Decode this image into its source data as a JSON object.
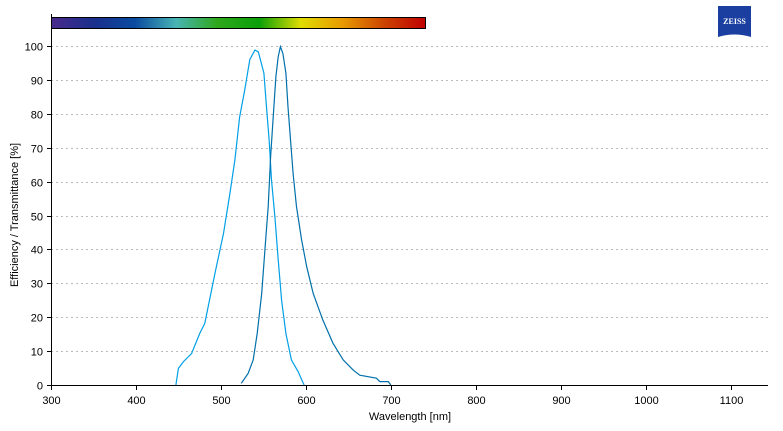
{
  "chart_data": {
    "type": "line",
    "title": "",
    "xlabel": "Wavelength [nm]",
    "ylabel": "Efficiency / Transmittance [%]",
    "xlim": [
      300,
      1144
    ],
    "ylim": [
      0,
      100
    ],
    "xticks": [
      300,
      400,
      500,
      600,
      700,
      800,
      900,
      1000,
      1100
    ],
    "yticks": [
      0,
      10,
      20,
      30,
      40,
      50,
      60,
      70,
      80,
      90,
      100
    ],
    "grid": "horizontal dotted",
    "legend": "none",
    "spectrum_bar": {
      "range_nm": [
        300,
        740
      ],
      "colors": [
        "#4a2a8c",
        "#1a2f8c",
        "#0a4aa0",
        "#48b4b4",
        "#2ea81a",
        "#0aa00a",
        "#e0dc00",
        "#e89a00",
        "#cc4400",
        "#c00000"
      ]
    },
    "logo": "ZEISS",
    "series": [
      {
        "color": "#00a0e6",
        "x": [
          447,
          450,
          456,
          465.5,
          475,
          481,
          493,
          503,
          510.6,
          516.5,
          522,
          528,
          534,
          540,
          544,
          550.6,
          553.7,
          556.8,
          559.6,
          563.5,
          567.5,
          571.4,
          576.5,
          583,
          591,
          597,
          598
        ],
        "y": [
          0,
          4.9,
          6.9,
          9.3,
          15.2,
          18.2,
          33,
          44.7,
          56.5,
          66.4,
          79,
          87,
          96,
          98.8,
          98.3,
          92,
          82,
          72,
          60.5,
          49.6,
          37,
          25,
          15.2,
          7.4,
          3.9,
          0.5,
          0
        ]
      },
      {
        "color": "#0070aa",
        "x": [
          524,
          532,
          538,
          542.7,
          548,
          551.8,
          555.7,
          558.5,
          561.6,
          564.7,
          567.5,
          570,
          573,
          576.5,
          579,
          582,
          585,
          589,
          595,
          601,
          608.6,
          620,
          632,
          644,
          655.7,
          663.5,
          683,
          687,
          697,
          700
        ],
        "y": [
          0.5,
          3.4,
          7.4,
          15.2,
          27,
          39.8,
          52.6,
          67.3,
          79,
          91,
          96.8,
          99.8,
          97.8,
          92,
          82,
          72,
          62.4,
          52.6,
          42.8,
          34.9,
          27,
          19.2,
          12.3,
          7.4,
          4.4,
          2.9,
          2,
          1,
          1,
          0
        ]
      }
    ]
  }
}
